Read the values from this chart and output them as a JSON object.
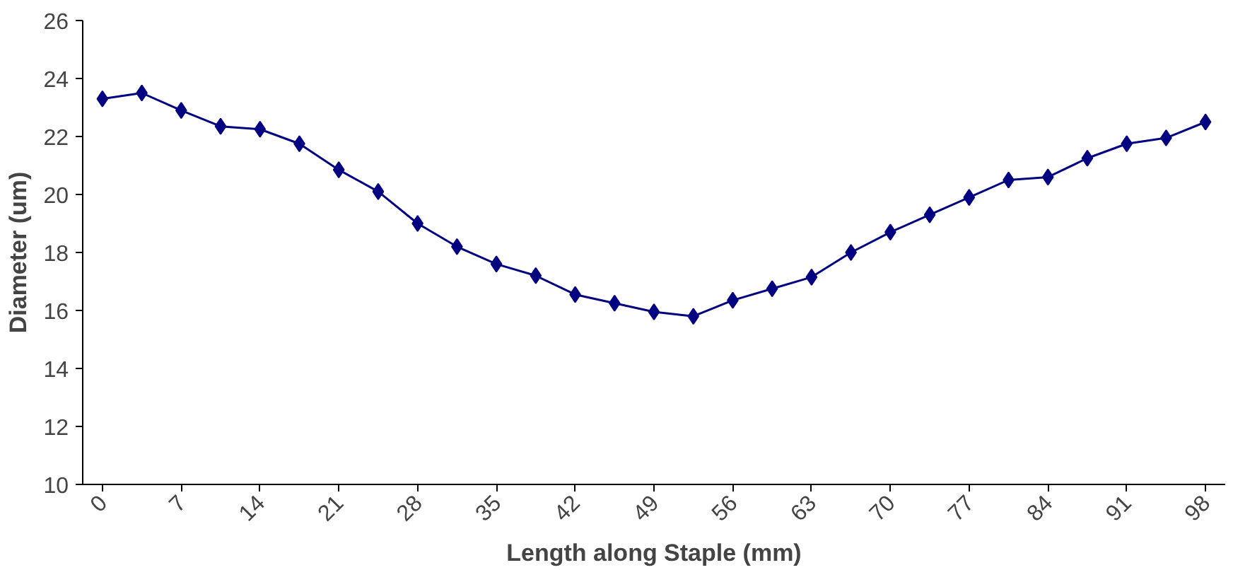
{
  "chart_data": {
    "type": "line",
    "xlabel": "Length along Staple (mm)",
    "ylabel": "Diameter (um)",
    "x": [
      0,
      3.5,
      7,
      10.5,
      14,
      17.5,
      21,
      24.5,
      28,
      31.5,
      35,
      38.5,
      42,
      45.5,
      49,
      52.5,
      56,
      59.5,
      63,
      66.5,
      70,
      73.5,
      77,
      80.5,
      84,
      87.5,
      91,
      94.5,
      98
    ],
    "series": [
      {
        "color": "#000080",
        "values": [
          23.3,
          23.5,
          22.9,
          22.35,
          22.25,
          21.75,
          20.85,
          20.1,
          19.0,
          18.2,
          17.6,
          17.2,
          16.55,
          16.25,
          15.95,
          15.8,
          16.35,
          16.75,
          17.15,
          18.0,
          18.7,
          19.3,
          19.9,
          20.5,
          20.6,
          21.25,
          21.75,
          21.95,
          22.5
        ]
      }
    ],
    "xlim": [
      -1.75,
      99.75
    ],
    "xticks": [
      0,
      7,
      14,
      21,
      28,
      35,
      42,
      49,
      56,
      63,
      70,
      77,
      84,
      91,
      98
    ],
    "ylim": [
      10,
      26
    ],
    "yticks": [
      10,
      12,
      14,
      16,
      18,
      20,
      22,
      24,
      26
    ],
    "grid": false,
    "marker": "diamond",
    "line_style": "solid"
  }
}
